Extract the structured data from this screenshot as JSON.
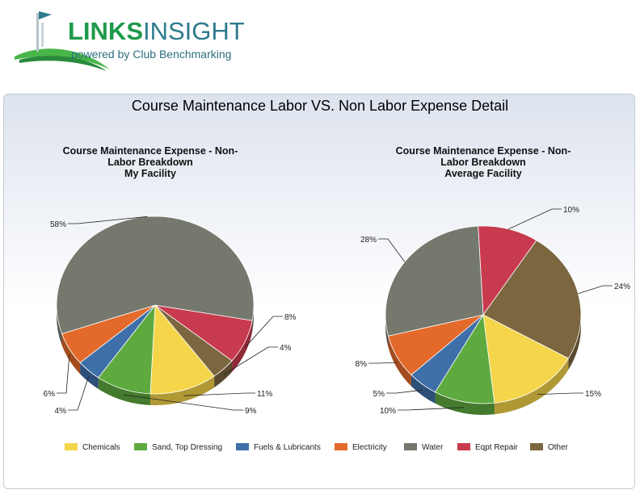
{
  "brand": {
    "name_part1": "LINKS",
    "name_part2": "INSIGHT",
    "tagline": "powered by Club Benchmarking"
  },
  "colors": {
    "chemicals": "#f5d54a",
    "sand": "#5eaa3f",
    "fuels": "#3e6fa8",
    "electricity": "#e36a2b",
    "water": "#75786d",
    "eqpt": "#c83a4e",
    "other": "#7b6640"
  },
  "chart_data": [
    {
      "type": "pie",
      "title_lines": [
        "Course Maintenance Expense - Non-",
        "Labor Breakdown",
        "My Facility"
      ],
      "slices": [
        {
          "key": "eqpt",
          "label": "8%",
          "value": 8
        },
        {
          "key": "other",
          "label": "4%",
          "value": 4
        },
        {
          "key": "chemicals",
          "label": "11%",
          "value": 11
        },
        {
          "key": "sand",
          "label": "9%",
          "value": 9
        },
        {
          "key": "fuels",
          "label": "4%",
          "value": 4
        },
        {
          "key": "electricity",
          "label": "6%",
          "value": 6
        },
        {
          "key": "water",
          "label": "58%",
          "value": 58
        }
      ]
    },
    {
      "type": "pie",
      "title_lines": [
        "Course Maintenance Expense - Non-",
        "Labor Breakdown",
        "Average Facility"
      ],
      "slices": [
        {
          "key": "eqpt",
          "label": "10%",
          "value": 10
        },
        {
          "key": "other",
          "label": "24%",
          "value": 24
        },
        {
          "key": "chemicals",
          "label": "15%",
          "value": 15
        },
        {
          "key": "sand",
          "label": "10%",
          "value": 10
        },
        {
          "key": "fuels",
          "label": "5%",
          "value": 5
        },
        {
          "key": "electricity",
          "label": "8%",
          "value": 8
        },
        {
          "key": "water",
          "label": "28%",
          "value": 28
        }
      ]
    }
  ],
  "main_title": "Course Maintenance Labor VS. Non Labor Expense Detail",
  "legend": [
    {
      "key": "chemicals",
      "label": "Chemicals"
    },
    {
      "key": "sand",
      "label": "Sand, Top Dressing"
    },
    {
      "key": "fuels",
      "label": "Fuels & Lubricants"
    },
    {
      "key": "electricity",
      "label": "Electricity"
    },
    {
      "key": "water",
      "label": "Water"
    },
    {
      "key": "eqpt",
      "label": "Eqpt Repair"
    },
    {
      "key": "other",
      "label": "Other"
    }
  ]
}
